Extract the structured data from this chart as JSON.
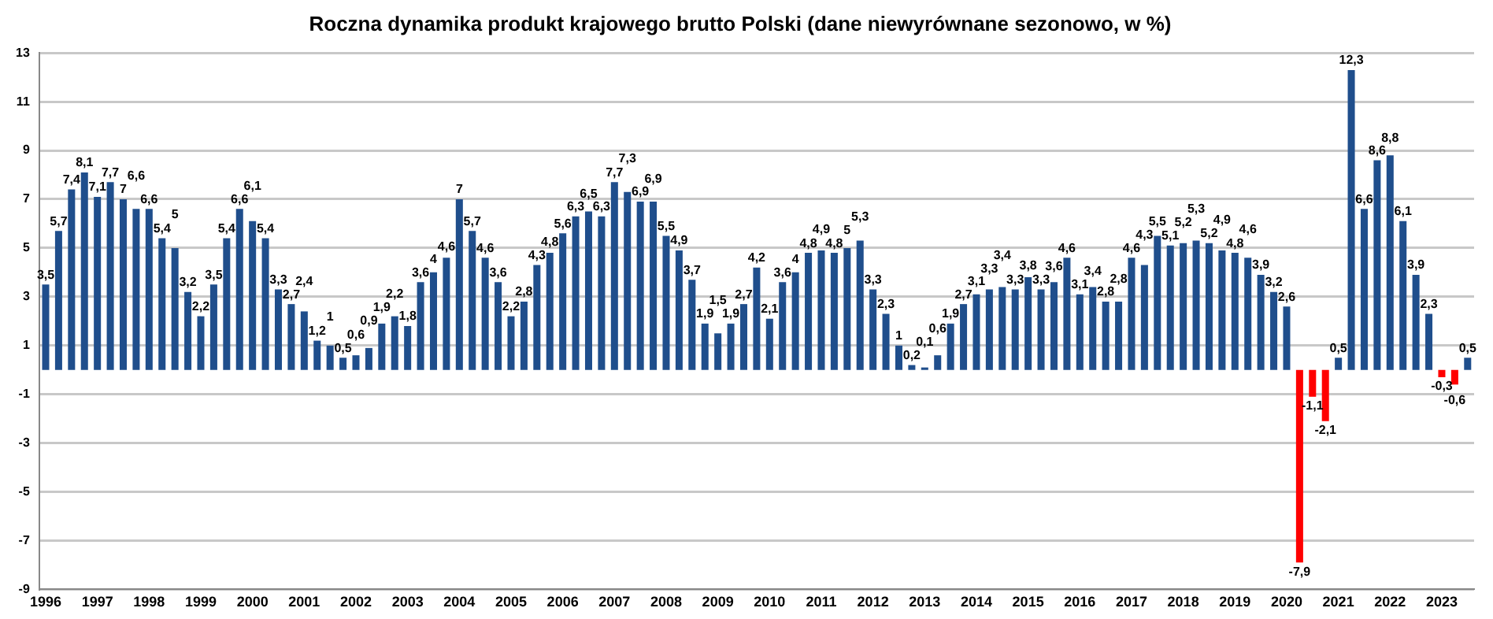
{
  "chart_data": {
    "type": "bar",
    "title": "Roczna dynamika produkt krajowego brutto Polski (dane niewyrównane sezonowo, w %)",
    "categories": [
      "1996",
      null,
      null,
      null,
      "1997",
      null,
      null,
      null,
      "1998",
      null,
      null,
      null,
      "1999",
      null,
      null,
      null,
      "2000",
      null,
      null,
      null,
      "2001",
      null,
      null,
      null,
      "2002",
      null,
      null,
      null,
      "2003",
      null,
      null,
      null,
      "2004",
      null,
      null,
      null,
      "2005",
      null,
      null,
      null,
      "2006",
      null,
      null,
      null,
      "2007",
      null,
      null,
      null,
      "2008",
      null,
      null,
      null,
      "2009",
      null,
      null,
      null,
      "2010",
      null,
      null,
      null,
      "2011",
      null,
      null,
      null,
      "2012",
      null,
      null,
      null,
      "2013",
      null,
      null,
      null,
      "2014",
      null,
      null,
      null,
      "2015",
      null,
      null,
      null,
      "2016",
      null,
      null,
      null,
      "2017",
      null,
      null,
      null,
      "2018",
      null,
      null,
      null,
      "2019",
      null,
      null,
      null,
      "2020",
      null,
      null,
      null,
      "2021",
      null,
      null,
      null,
      "2022",
      null,
      null,
      null,
      "2023",
      null,
      null
    ],
    "values": [
      3.5,
      5.7,
      7.4,
      8.1,
      7.1,
      7.7,
      7,
      6.6,
      6.6,
      5.4,
      5,
      3.2,
      2.2,
      3.5,
      5.4,
      6.6,
      6.1,
      5.4,
      3.3,
      2.7,
      2.4,
      1.2,
      1,
      0.5,
      0.6,
      0.9,
      1.9,
      2.2,
      1.8,
      3.6,
      4,
      4.6,
      7,
      5.7,
      4.6,
      3.6,
      2.2,
      2.8,
      4.3,
      4.8,
      5.6,
      6.3,
      6.5,
      6.3,
      7.7,
      7.3,
      6.9,
      6.9,
      5.5,
      4.9,
      3.7,
      1.9,
      1.5,
      1.9,
      2.7,
      4.2,
      2.1,
      3.6,
      4,
      4.8,
      4.9,
      4.8,
      5,
      5.3,
      3.3,
      2.3,
      1,
      0.2,
      0.1,
      0.6,
      1.9,
      2.7,
      3.1,
      3.3,
      3.4,
      3.3,
      3.8,
      3.3,
      3.6,
      4.6,
      3.1,
      3.4,
      2.8,
      2.8,
      4.6,
      4.3,
      5.5,
      5.1,
      5.2,
      5.3,
      5.2,
      4.9,
      4.8,
      4.6,
      3.9,
      3.2,
      2.6,
      -7.9,
      -1.1,
      -2.1,
      0.5,
      12.3,
      6.6,
      8.6,
      8.8,
      6.1,
      3.9,
      2.3,
      -0.3,
      -0.6,
      0.5
    ],
    "value_labels": [
      "3,5",
      "5,7",
      "7,4",
      "8,1",
      "7,1",
      "7,7",
      "7",
      "6,6",
      "6,6",
      "5,4",
      "5",
      "3,2",
      "2,2",
      "3,5",
      "5,4",
      "6,6",
      "6,1",
      "5,4",
      "3,3",
      "2,7",
      "2,4",
      "1,2",
      "1",
      "0,5",
      "0,6",
      "0,9",
      "1,9",
      "2,2",
      "1,8",
      "3,6",
      "4",
      "4,6",
      "7",
      "5,7",
      "4,6",
      "3,6",
      "2,2",
      "2,8",
      "4,3",
      "4,8",
      "5,6",
      "6,3",
      "6,5",
      "6,3",
      "7,7",
      "7,3",
      "6,9",
      "6,9",
      "5,5",
      "4,9",
      "3,7",
      "1,9",
      "1,5",
      "1,9",
      "2,7",
      "4,2",
      "2,1",
      "3,6",
      "4",
      "4,8",
      "4,9",
      "4,8",
      "5",
      "5,3",
      "3,3",
      "2,3",
      "1",
      "0,2",
      "0,1",
      "0,6",
      "1,9",
      "2,7",
      "3,1",
      "3,3",
      "3,4",
      "3,3",
      "3,8",
      "3,3",
      "3,6",
      "4,6",
      "3,1",
      "3,4",
      "2,8",
      "2,8",
      "4,6",
      "4,3",
      "5,5",
      "5,1",
      "5,2",
      "5,3",
      "5,2",
      "4,9",
      "4,8",
      "4,6",
      "3,9",
      "3,2",
      "2,6",
      "-7,9",
      "-1,1",
      "-2,1",
      "0,5",
      "12,3",
      "6,6",
      "8,6",
      "8,8",
      "6,1",
      "3,9",
      "2,3",
      "-0,3",
      "-0,6",
      "0,5"
    ],
    "colors": [
      "#1f4e8c",
      "#1f4e8c",
      "#1f4e8c",
      "#1f4e8c",
      "#1f4e8c",
      "#1f4e8c",
      "#1f4e8c",
      "#1f4e8c",
      "#1f4e8c",
      "#1f4e8c",
      "#1f4e8c",
      "#1f4e8c",
      "#1f4e8c",
      "#1f4e8c",
      "#1f4e8c",
      "#1f4e8c",
      "#1f4e8c",
      "#1f4e8c",
      "#1f4e8c",
      "#1f4e8c",
      "#1f4e8c",
      "#1f4e8c",
      "#1f4e8c",
      "#1f4e8c",
      "#1f4e8c",
      "#1f4e8c",
      "#1f4e8c",
      "#1f4e8c",
      "#1f4e8c",
      "#1f4e8c",
      "#1f4e8c",
      "#1f4e8c",
      "#1f4e8c",
      "#1f4e8c",
      "#1f4e8c",
      "#1f4e8c",
      "#1f4e8c",
      "#1f4e8c",
      "#1f4e8c",
      "#1f4e8c",
      "#1f4e8c",
      "#1f4e8c",
      "#1f4e8c",
      "#1f4e8c",
      "#1f4e8c",
      "#1f4e8c",
      "#1f4e8c",
      "#1f4e8c",
      "#1f4e8c",
      "#1f4e8c",
      "#1f4e8c",
      "#1f4e8c",
      "#1f4e8c",
      "#1f4e8c",
      "#1f4e8c",
      "#1f4e8c",
      "#1f4e8c",
      "#1f4e8c",
      "#1f4e8c",
      "#1f4e8c",
      "#1f4e8c",
      "#1f4e8c",
      "#1f4e8c",
      "#1f4e8c",
      "#1f4e8c",
      "#1f4e8c",
      "#1f4e8c",
      "#1f4e8c",
      "#1f4e8c",
      "#1f4e8c",
      "#1f4e8c",
      "#1f4e8c",
      "#1f4e8c",
      "#1f4e8c",
      "#1f4e8c",
      "#1f4e8c",
      "#1f4e8c",
      "#1f4e8c",
      "#1f4e8c",
      "#1f4e8c",
      "#1f4e8c",
      "#1f4e8c",
      "#1f4e8c",
      "#1f4e8c",
      "#1f4e8c",
      "#1f4e8c",
      "#1f4e8c",
      "#1f4e8c",
      "#1f4e8c",
      "#1f4e8c",
      "#1f4e8c",
      "#1f4e8c",
      "#1f4e8c",
      "#1f4e8c",
      "#1f4e8c",
      "#1f4e8c",
      "#1f4e8c",
      "#ff0000",
      "#ff0000",
      "#ff0000",
      "#1f4e8c",
      "#1f4e8c",
      "#1f4e8c",
      "#1f4e8c",
      "#1f4e8c",
      "#1f4e8c",
      "#1f4e8c",
      "#1f4e8c",
      "#ff0000",
      "#ff0000",
      "#1f4e8c"
    ],
    "ylim": [
      -9,
      13
    ],
    "yticks": [
      -9,
      -7,
      -5,
      -3,
      -1,
      1,
      3,
      5,
      7,
      9,
      11,
      13
    ],
    "grid": "y",
    "legend": false
  }
}
